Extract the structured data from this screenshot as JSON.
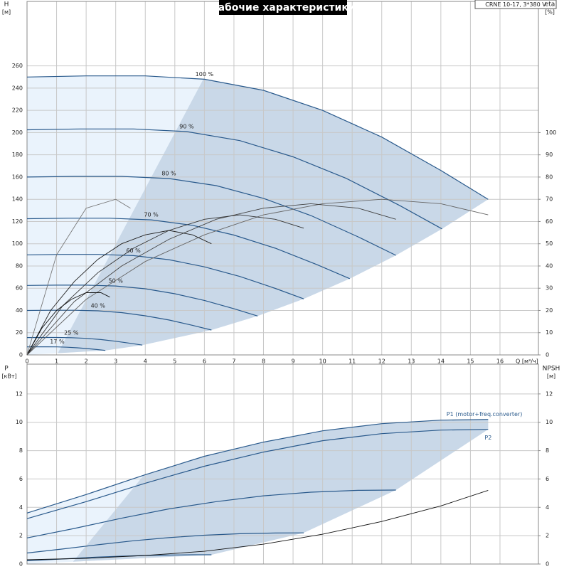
{
  "chart_data": [
    {
      "type": "line",
      "title": "Рабочие характеристики",
      "subtitle": "CRNE 10-17, 3*380 V",
      "xlabel": "Q [м³/ч]",
      "ylabel": "H",
      "ylabel_unit": "[м]",
      "y2label": "eta",
      "y2label_unit": "[%]",
      "xlim": [
        0,
        17.3
      ],
      "xticks": [
        0,
        1,
        2,
        3,
        4,
        5,
        6,
        7,
        8,
        9,
        10,
        11,
        12,
        13,
        14,
        15,
        16
      ],
      "ylim": [
        0,
        318
      ],
      "yticks": [
        0,
        20,
        40,
        60,
        80,
        100,
        120,
        140,
        160,
        180,
        200,
        220,
        240,
        260
      ],
      "y2lim": [
        0,
        159
      ],
      "y2ticks": [
        0,
        10,
        20,
        30,
        40,
        50,
        60,
        70,
        80,
        90,
        100
      ],
      "grid": true,
      "series": [
        {
          "name": "100 %",
          "color": "#2a5a8c",
          "x": [
            0,
            2,
            4,
            6,
            8,
            10,
            12,
            14,
            15.6
          ],
          "values": [
            250,
            251,
            251,
            248,
            238,
            220,
            196,
            166,
            140
          ]
        },
        {
          "name": "90 %",
          "color": "#2a5a8c",
          "x": [
            0,
            1.8,
            3.6,
            5.4,
            7.2,
            9,
            10.8,
            12.6,
            14.04
          ],
          "values": [
            202.5,
            203.3,
            203.3,
            200.9,
            192.8,
            178.2,
            158.8,
            134.5,
            113.4
          ]
        },
        {
          "name": "80 %",
          "color": "#2a5a8c",
          "x": [
            0,
            1.6,
            3.2,
            4.8,
            6.4,
            8,
            9.6,
            11.2,
            12.48
          ],
          "values": [
            160,
            160.6,
            160.6,
            158.7,
            152.3,
            140.8,
            125.4,
            106.2,
            89.6
          ]
        },
        {
          "name": "70 %",
          "color": "#2a5a8c",
          "x": [
            0,
            1.4,
            2.8,
            4.2,
            5.6,
            7,
            8.4,
            9.8,
            10.92
          ],
          "values": [
            122.5,
            123,
            123,
            121.5,
            116.6,
            107.8,
            96,
            81.3,
            68.6
          ]
        },
        {
          "name": "60 %",
          "color": "#2a5a8c",
          "x": [
            0,
            1.2,
            2.4,
            3.6,
            4.8,
            6,
            7.2,
            8.4,
            9.36
          ],
          "values": [
            90,
            90.4,
            90.4,
            89.3,
            85.7,
            79.2,
            70.6,
            59.8,
            50.4
          ]
        },
        {
          "name": "50 %",
          "color": "#2a5a8c",
          "x": [
            0,
            1,
            2,
            3,
            4,
            5,
            6,
            7,
            7.8
          ],
          "values": [
            62.5,
            62.8,
            62.8,
            62,
            59.5,
            55,
            49,
            41.5,
            35
          ]
        },
        {
          "name": "40 %",
          "color": "#2a5a8c",
          "x": [
            0,
            0.8,
            1.6,
            2.4,
            3.2,
            4,
            4.8,
            5.6,
            6.24
          ],
          "values": [
            40,
            40.2,
            40.2,
            39.7,
            38.1,
            35.2,
            31.4,
            26.6,
            22.4
          ]
        },
        {
          "name": "25 %",
          "color": "#2a5a8c",
          "x": [
            0,
            0.5,
            1,
            1.5,
            2,
            2.5,
            3,
            3.5,
            3.9
          ],
          "values": [
            15.6,
            15.7,
            15.7,
            15.5,
            14.9,
            13.8,
            12.3,
            10.4,
            8.8
          ]
        },
        {
          "name": "17 %",
          "color": "#2a5a8c",
          "x": [
            0,
            0.34,
            0.68,
            1.02,
            1.36,
            1.7,
            2.04,
            2.38,
            2.65
          ],
          "values": [
            7.2,
            7.3,
            7.3,
            7.2,
            6.9,
            6.4,
            5.7,
            4.8,
            4
          ]
        },
        {
          "color": "#666666",
          "axis": "y2",
          "x": [
            0,
            2,
            4,
            6,
            8,
            10,
            12,
            14,
            15.6
          ],
          "values": [
            0,
            25,
            42,
            54,
            63,
            68,
            70,
            68,
            63
          ]
        },
        {
          "color": "#444444",
          "axis": "y2",
          "x": [
            0,
            1.6,
            3.2,
            4.8,
            6.4,
            8,
            9.6,
            11.2,
            12.48
          ],
          "values": [
            0,
            24,
            40,
            52,
            61,
            66,
            68,
            66,
            61
          ]
        },
        {
          "color": "#333333",
          "axis": "y2",
          "x": [
            0,
            1.2,
            2.4,
            3.6,
            4.8,
            6,
            7.2,
            8.4,
            9.36
          ],
          "values": [
            0,
            22,
            37,
            48,
            56,
            61,
            63,
            61,
            57
          ]
        },
        {
          "color": "#222222",
          "axis": "y2",
          "x": [
            0,
            0.8,
            1.6,
            2.4,
            3.2,
            4,
            4.8,
            5.6,
            6.24
          ],
          "values": [
            0,
            20,
            33,
            43,
            50,
            54,
            56,
            54,
            50
          ]
        },
        {
          "color": "#111111",
          "axis": "y2",
          "x": [
            0,
            0.5,
            1,
            1.5,
            2,
            2.5,
            2.8
          ],
          "values": [
            0,
            12,
            20,
            25,
            28,
            28,
            26
          ]
        },
        {
          "color": "#777777",
          "axis": "y2",
          "x": [
            0,
            1,
            2,
            3,
            3.5
          ],
          "values": [
            0,
            45,
            66,
            70,
            66
          ]
        }
      ]
    },
    {
      "type": "line",
      "ylabel": "P",
      "ylabel_unit": "[кВт]",
      "y2label": "NPSH",
      "y2label_unit": "[м]",
      "xlim": [
        0,
        17.3
      ],
      "ylim": [
        0,
        14.1
      ],
      "yticks": [
        0,
        2,
        4,
        6,
        8,
        10,
        12
      ],
      "y2lim": [
        0,
        14.1
      ],
      "y2ticks": [
        0,
        2,
        4,
        6,
        8,
        10,
        12
      ],
      "grid": true,
      "series": [
        {
          "name": "P1 (motor+freq.converter)",
          "color": "#2a5a8c",
          "x": [
            0,
            2,
            4,
            6,
            8,
            10,
            12,
            14,
            15.6
          ],
          "values": [
            3.6,
            4.9,
            6.3,
            7.6,
            8.6,
            9.4,
            9.9,
            10.15,
            10.2
          ]
        },
        {
          "name": "P2",
          "color": "#2a5a8c",
          "x": [
            0,
            2,
            4,
            6,
            8,
            10,
            12,
            14,
            15.6
          ],
          "values": [
            3.2,
            4.4,
            5.7,
            6.9,
            7.9,
            8.7,
            9.2,
            9.45,
            9.5
          ]
        },
        {
          "color": "#2a5a8c",
          "x": [
            0,
            1.6,
            3.2,
            4.8,
            6.4,
            8,
            9.6,
            11.2,
            12.48
          ],
          "values": [
            1.84,
            2.51,
            3.23,
            3.89,
            4.4,
            4.81,
            5.07,
            5.2,
            5.22
          ]
        },
        {
          "color": "#2a5a8c",
          "x": [
            0,
            1.2,
            2.4,
            3.6,
            4.8,
            6,
            7.2,
            8.4,
            9.36
          ],
          "values": [
            0.78,
            1.06,
            1.36,
            1.64,
            1.86,
            2.03,
            2.14,
            2.19,
            2.2
          ]
        },
        {
          "color": "#2a5a8c",
          "x": [
            0,
            0.8,
            1.6,
            2.4,
            3.2,
            4,
            4.8,
            5.6,
            6.24
          ],
          "values": [
            0.23,
            0.31,
            0.4,
            0.49,
            0.55,
            0.6,
            0.63,
            0.65,
            0.65
          ]
        },
        {
          "color": "#111111",
          "axis": "y2",
          "x": [
            0,
            2,
            4,
            6,
            8,
            10,
            12,
            14,
            15.6
          ],
          "values": [
            0.3,
            0.4,
            0.6,
            0.9,
            1.4,
            2.1,
            3,
            4.1,
            5.2
          ]
        }
      ]
    }
  ]
}
